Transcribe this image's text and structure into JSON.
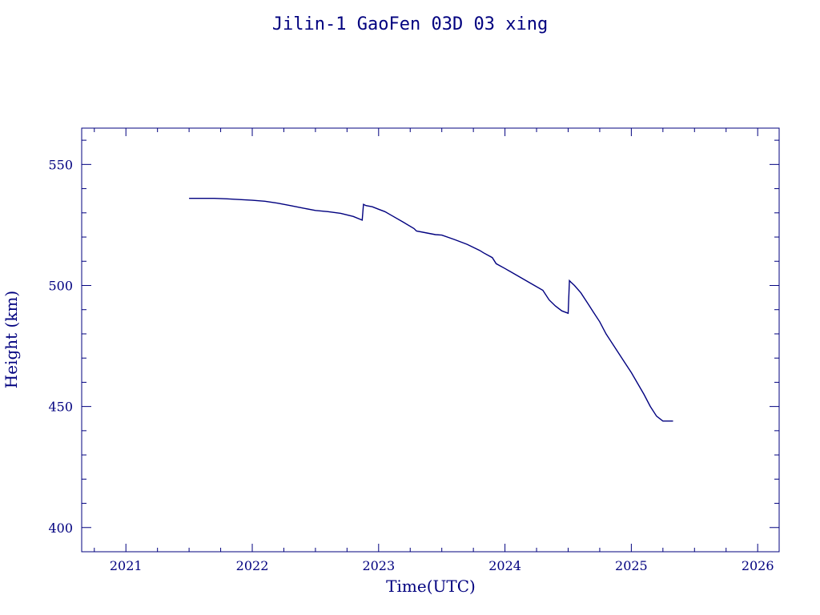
{
  "chart_data": {
    "type": "line",
    "title": "Jilin-1 GaoFen 03D 03 xing",
    "xlabel": "Time(UTC)",
    "ylabel": "Height (km)",
    "xlim": [
      2020.65,
      2026.17
    ],
    "ylim": [
      390,
      565
    ],
    "x_ticks": [
      2021,
      2022,
      2023,
      2024,
      2025,
      2026
    ],
    "x_tick_labels": [
      "2021",
      "2022",
      "2023",
      "2024",
      "2025",
      "2026"
    ],
    "y_ticks": [
      400,
      450,
      500,
      550
    ],
    "y_tick_labels": [
      "400",
      "450",
      "500",
      "550"
    ],
    "grid": false,
    "color": "#00007f",
    "series": [
      {
        "x": [
          2021.5,
          2021.6,
          2021.7,
          2021.8,
          2021.9,
          2022.0,
          2022.1,
          2022.2,
          2022.3,
          2022.4,
          2022.5,
          2022.6,
          2022.7,
          2022.8,
          2022.87,
          2022.88,
          2022.9,
          2022.95,
          2023.0,
          2023.05,
          2023.1,
          2023.2,
          2023.28,
          2023.3,
          2023.4,
          2023.45,
          2023.5,
          2023.6,
          2023.7,
          2023.8,
          2023.83,
          2023.9,
          2023.93,
          2024.0,
          2024.1,
          2024.2,
          2024.3,
          2024.35,
          2024.4,
          2024.45,
          2024.5,
          2024.51,
          2024.52,
          2024.55,
          2024.6,
          2024.65,
          2024.7,
          2024.75,
          2024.8,
          2024.85,
          2024.9,
          2024.95,
          2025.0,
          2025.05,
          2025.1,
          2025.15,
          2025.2,
          2025.25,
          2025.3,
          2025.33
        ],
        "y": [
          536,
          536,
          536,
          535.8,
          535.5,
          535.2,
          534.8,
          534,
          533,
          532,
          531,
          530.5,
          529.8,
          528.5,
          527,
          533.5,
          533,
          532.5,
          531.5,
          530.5,
          529,
          526,
          523.5,
          522.5,
          521.5,
          521,
          520.8,
          519,
          517,
          514.5,
          513.5,
          511.5,
          509,
          507,
          504,
          501,
          498,
          494,
          491.5,
          489.5,
          488.5,
          502,
          501.5,
          500,
          497,
          493,
          489,
          485,
          480,
          476,
          472,
          468,
          464,
          459.5,
          455,
          450,
          446,
          444,
          444,
          444
        ]
      }
    ]
  }
}
